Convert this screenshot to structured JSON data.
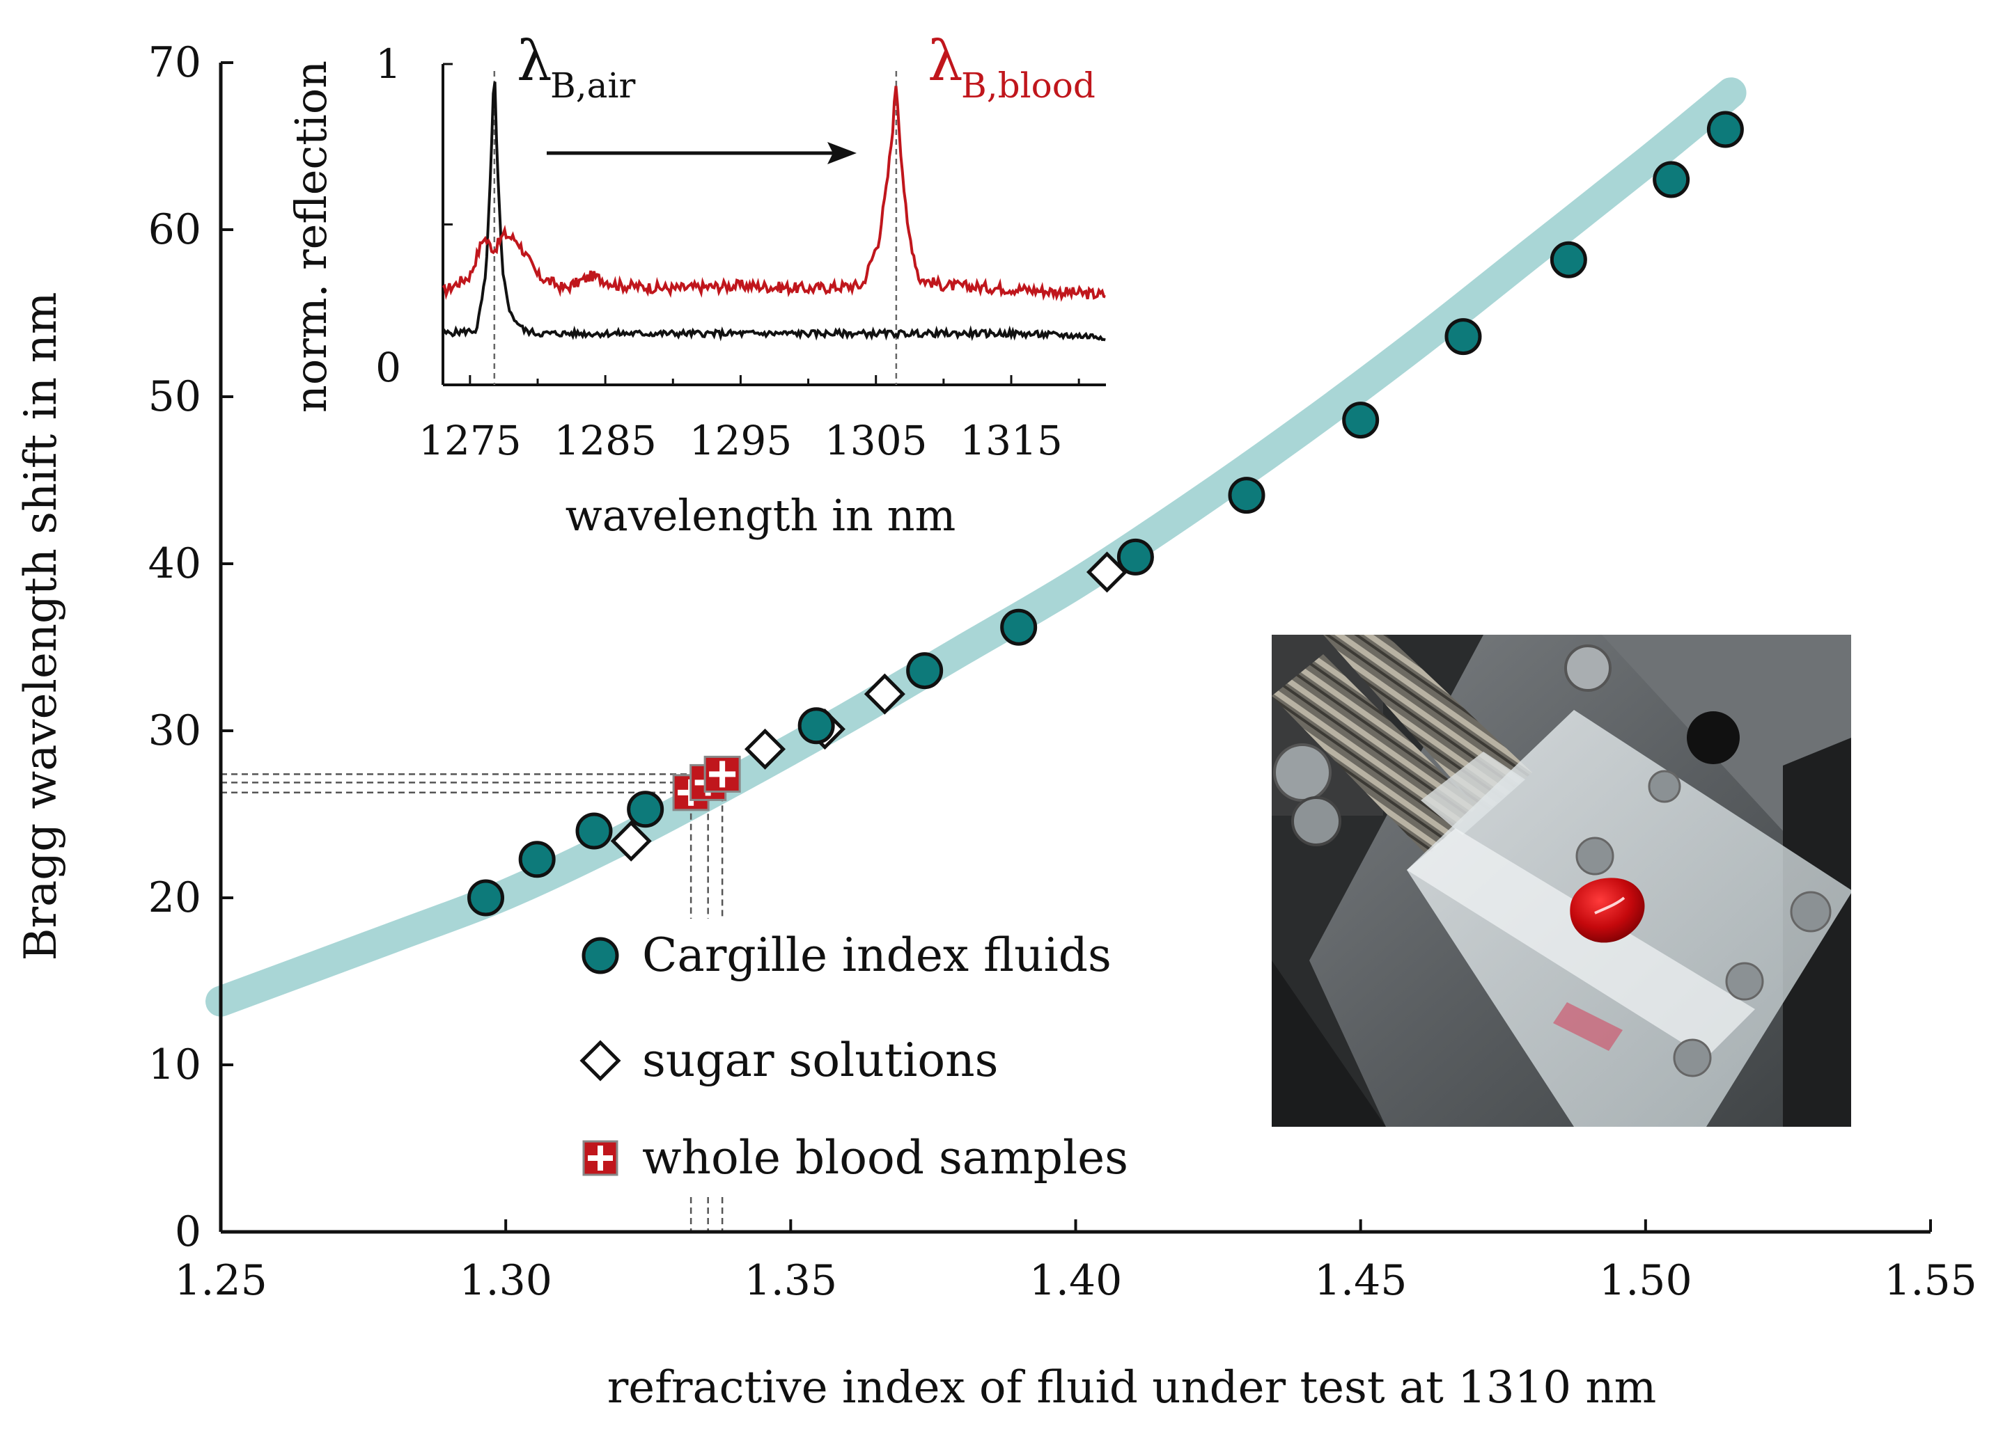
{
  "chart_data": [
    {
      "type": "scatter",
      "xlabel": "refractive index of fluid under test at 1310 nm",
      "ylabel": "Bragg wavelength shift in nm",
      "xlim": [
        1.25,
        1.55
      ],
      "ylim": [
        0,
        70
      ],
      "x_ticks": [
        "1.25",
        "1.30",
        "1.35",
        "1.40",
        "1.45",
        "1.50",
        "1.55"
      ],
      "y_ticks": [
        "0",
        "10",
        "20",
        "30",
        "40",
        "50",
        "60",
        "70"
      ],
      "grid": false,
      "legend_position": "bottom-center",
      "fit_curve": {
        "color": "#a9d6d6",
        "x": [
          1.25,
          1.28,
          1.3,
          1.32,
          1.34,
          1.36,
          1.38,
          1.4,
          1.42,
          1.44,
          1.46,
          1.48,
          1.5,
          1.515
        ],
        "y": [
          13.8,
          17.6,
          20.2,
          23.4,
          27.0,
          30.8,
          34.8,
          38.8,
          43.3,
          48.1,
          53.2,
          58.6,
          64.0,
          68.2
        ]
      },
      "series": [
        {
          "name": "Cargille index fluids",
          "marker": "circle",
          "color": "#0d7a7a",
          "x": [
            1.2965,
            1.3055,
            1.3155,
            1.3245,
            1.3545,
            1.3735,
            1.39,
            1.4105,
            1.43,
            1.45,
            1.468,
            1.4865,
            1.5045,
            1.514
          ],
          "y": [
            20.0,
            22.3,
            24.0,
            25.3,
            30.3,
            33.6,
            36.2,
            40.4,
            44.1,
            48.6,
            53.6,
            58.2,
            63.0,
            66.0
          ]
        },
        {
          "name": "sugar solutions",
          "marker": "diamond",
          "color": "#ffffff",
          "x": [
            1.322,
            1.3455,
            1.356,
            1.3665,
            1.4055
          ],
          "y": [
            23.4,
            28.9,
            30.1,
            32.2,
            39.5
          ]
        },
        {
          "name": "whole blood samples",
          "marker": "cross-square",
          "color": "#c0161c",
          "x": [
            1.3325,
            1.3355,
            1.338
          ],
          "y": [
            26.3,
            26.9,
            27.4
          ]
        }
      ]
    },
    {
      "type": "line",
      "xlabel": "wavelength in nm",
      "ylabel": "norm. reflection",
      "xlim": [
        1273,
        1322
      ],
      "ylim": [
        0,
        1
      ],
      "x_ticks": [
        "1275",
        "1285",
        "1295",
        "1305",
        "1315"
      ],
      "y_ticks": [
        "0",
        "1"
      ],
      "peak_labels": [
        {
          "symbol": "λ",
          "sub": "B,air",
          "color": "#111111"
        },
        {
          "symbol": "λ",
          "sub": "B,blood",
          "color": "#c0161c"
        }
      ],
      "peak_positions": [
        1276.8,
        1306.5
      ],
      "series": [
        {
          "color": "#111111",
          "x": [
            1273,
            1275.5,
            1276.2,
            1276.6,
            1276.8,
            1277.0,
            1277.4,
            1278.0,
            1279,
            1280,
            1285,
            1295,
            1305,
            1315,
            1322
          ],
          "y": [
            0.16,
            0.17,
            0.35,
            0.75,
            1.0,
            0.7,
            0.35,
            0.22,
            0.17,
            0.16,
            0.16,
            0.16,
            0.16,
            0.16,
            0.15
          ]
        },
        {
          "color": "#c0161c",
          "x": [
            1273,
            1275,
            1276,
            1276.8,
            1277.5,
            1278.5,
            1280,
            1282,
            1284,
            1286,
            1290,
            1295,
            1300,
            1304,
            1305.2,
            1305.8,
            1306.2,
            1306.5,
            1306.8,
            1307.3,
            1308.2,
            1310,
            1315,
            1322
          ],
          "y": [
            0.29,
            0.34,
            0.46,
            0.42,
            0.47,
            0.45,
            0.34,
            0.3,
            0.34,
            0.31,
            0.3,
            0.31,
            0.3,
            0.31,
            0.45,
            0.62,
            0.78,
            0.95,
            0.75,
            0.5,
            0.33,
            0.31,
            0.3,
            0.28
          ]
        }
      ]
    }
  ]
}
